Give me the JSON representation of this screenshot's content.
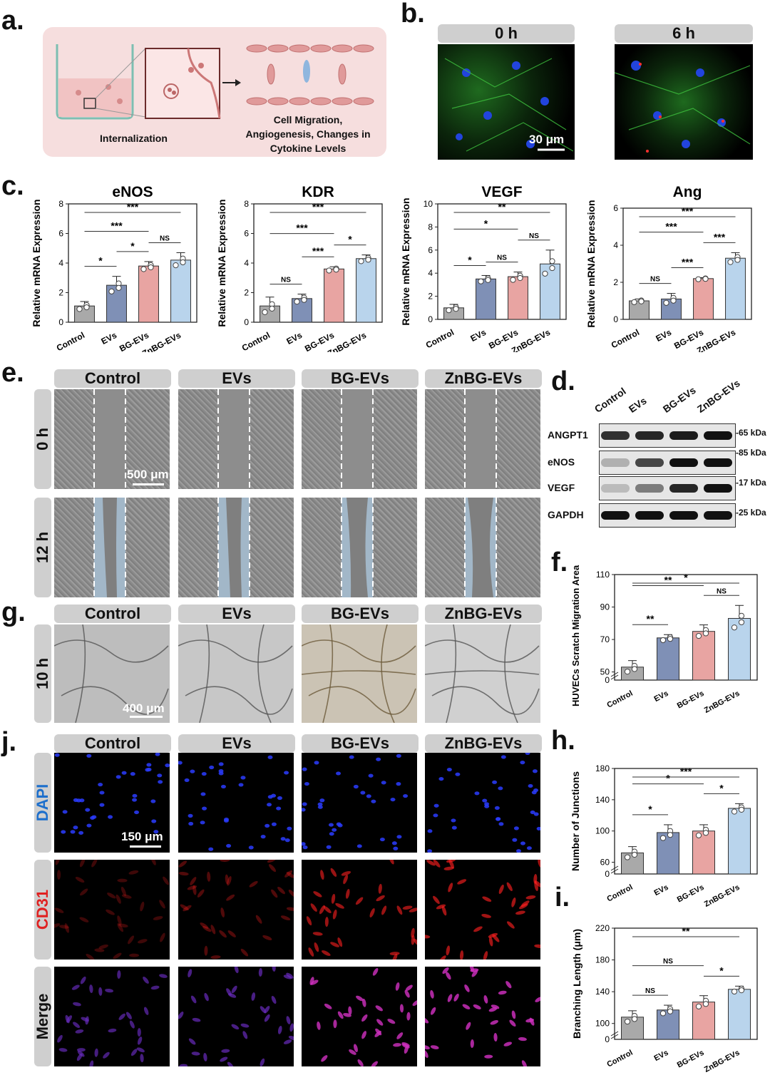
{
  "panel_letters": {
    "a": "a.",
    "b": "b.",
    "c": "c.",
    "d": "d.",
    "e": "e.",
    "f": "f.",
    "g": "g.",
    "h": "h.",
    "i": "i.",
    "j": "j."
  },
  "panel_a": {
    "label1": "Internalization",
    "label2": [
      "Cell Migration,",
      "Angiogenesis, Changes in",
      "Cytokine Levels"
    ]
  },
  "panel_b": {
    "headers": [
      "0 h",
      "6 h"
    ],
    "scale": "30 μm"
  },
  "groups": [
    "Control",
    "EVs",
    "BG-EVs",
    "ZnBG-EVs"
  ],
  "colors": {
    "Control": "#a9a9a9",
    "EVs": "#7f90b6",
    "BG-EVs": "#e8a4a2",
    "ZnBG-EVs": "#b9d4ec"
  },
  "panel_e": {
    "rows": [
      "0 h",
      "12 h"
    ],
    "scale": "500 μm"
  },
  "panel_g": {
    "rows": [
      "10 h"
    ],
    "scale": "400 μm"
  },
  "panel_j": {
    "rows": [
      "DAPI",
      "CD31",
      "Merge"
    ],
    "row_colors": [
      "#1d6fcc",
      "#e02020",
      "#222222"
    ],
    "scale": "150 μm"
  },
  "panel_d": {
    "lanes": [
      "Control",
      "EVs",
      "BG-EVs",
      "ZnBG-EVs"
    ],
    "proteins": [
      "ANGPT1",
      "eNOS",
      "VEGF",
      "GAPDH"
    ],
    "sizes": [
      "65 kDa",
      "85 kDa",
      "17 kDa",
      "25 kDa"
    ],
    "band_intensity": [
      [
        0.85,
        0.9,
        0.95,
        1.0
      ],
      [
        0.25,
        0.75,
        1.0,
        1.0
      ],
      [
        0.2,
        0.5,
        0.9,
        1.0
      ],
      [
        1.0,
        1.0,
        1.0,
        1.0
      ]
    ]
  },
  "chart_data": [
    {
      "id": "eNOS",
      "type": "bar",
      "title": "eNOS",
      "ylabel": "Relative mRNA Expression",
      "categories": [
        "Control",
        "EVs",
        "BG-EVs",
        "ZnBG-EVs"
      ],
      "values": [
        1.1,
        2.5,
        3.8,
        4.2
      ],
      "errors": [
        0.3,
        0.6,
        0.3,
        0.5
      ],
      "ylim": [
        0,
        8
      ],
      "yticks": [
        0,
        2,
        4,
        6,
        8
      ],
      "sig": [
        {
          "a": 0,
          "b": 1,
          "t": "*"
        },
        {
          "a": 1,
          "b": 2,
          "t": "*"
        },
        {
          "a": 0,
          "b": 2,
          "t": "***"
        },
        {
          "a": 2,
          "b": 3,
          "t": "NS"
        },
        {
          "a": 0,
          "b": 3,
          "t": "***"
        }
      ]
    },
    {
      "id": "KDR",
      "type": "bar",
      "title": "KDR",
      "ylabel": "Relative mRNA Expression",
      "categories": [
        "Control",
        "EVs",
        "BG-EVs",
        "ZnBG-EVs"
      ],
      "values": [
        1.1,
        1.6,
        3.6,
        4.3
      ],
      "errors": [
        0.6,
        0.3,
        0.15,
        0.25
      ],
      "ylim": [
        0,
        8
      ],
      "yticks": [
        0,
        2,
        4,
        6,
        8
      ],
      "sig": [
        {
          "a": 0,
          "b": 1,
          "t": "NS"
        },
        {
          "a": 1,
          "b": 2,
          "t": "***"
        },
        {
          "a": 0,
          "b": 2,
          "t": "***"
        },
        {
          "a": 2,
          "b": 3,
          "t": "*"
        },
        {
          "a": 0,
          "b": 3,
          "t": "***"
        }
      ]
    },
    {
      "id": "VEGF",
      "type": "bar",
      "title": "VEGF",
      "ylabel": "Relative mRNA Expression",
      "categories": [
        "Control",
        "EVs",
        "BG-EVs",
        "ZnBG-EVs"
      ],
      "values": [
        1.0,
        3.5,
        3.7,
        4.8
      ],
      "errors": [
        0.3,
        0.3,
        0.4,
        1.2
      ],
      "ylim": [
        0,
        10
      ],
      "yticks": [
        0,
        2,
        4,
        6,
        8,
        10
      ],
      "sig": [
        {
          "a": 0,
          "b": 1,
          "t": "*"
        },
        {
          "a": 1,
          "b": 2,
          "t": "NS"
        },
        {
          "a": 0,
          "b": 2,
          "t": "*"
        },
        {
          "a": 2,
          "b": 3,
          "t": "NS"
        },
        {
          "a": 0,
          "b": 3,
          "t": "**"
        }
      ]
    },
    {
      "id": "Ang",
      "type": "bar",
      "title": "Ang",
      "ylabel": "Relative mRNA Expression",
      "categories": [
        "Control",
        "EVs",
        "BG-EVs",
        "ZnBG-EVs"
      ],
      "values": [
        1.0,
        1.1,
        2.2,
        3.3
      ],
      "errors": [
        0.1,
        0.3,
        0.05,
        0.3
      ],
      "ylim": [
        0,
        6
      ],
      "yticks": [
        0,
        2,
        4,
        6
      ],
      "sig": [
        {
          "a": 0,
          "b": 1,
          "t": "NS"
        },
        {
          "a": 1,
          "b": 2,
          "t": "***"
        },
        {
          "a": 0,
          "b": 2,
          "t": "***"
        },
        {
          "a": 2,
          "b": 3,
          "t": "***"
        },
        {
          "a": 0,
          "b": 3,
          "t": "***"
        }
      ]
    },
    {
      "id": "f",
      "type": "bar",
      "ylabel": "HUVECs Scratch Migration Area (%)",
      "categories": [
        "Control",
        "EVs",
        "BG-EVs",
        "ZnBG-EVs"
      ],
      "values": [
        53,
        71,
        75,
        83
      ],
      "errors": [
        4,
        2,
        4,
        8
      ],
      "ylim": [
        45,
        110
      ],
      "yticks": [
        50,
        70,
        90,
        110
      ],
      "axis_break": true,
      "sig": [
        {
          "a": 0,
          "b": 1,
          "t": "**"
        },
        {
          "a": 0,
          "b": 2,
          "t": "**"
        },
        {
          "a": 2,
          "b": 3,
          "t": "NS"
        },
        {
          "a": 0,
          "b": 3,
          "t": "*"
        }
      ]
    },
    {
      "id": "h",
      "type": "bar",
      "ylabel": "Number of Junctions",
      "categories": [
        "Control",
        "EVs",
        "BG-EVs",
        "ZnBG-EVs"
      ],
      "values": [
        72,
        98,
        100,
        129
      ],
      "errors": [
        8,
        10,
        8,
        6
      ],
      "ylim": [
        45,
        180
      ],
      "yticks": [
        60,
        100,
        140,
        180
      ],
      "axis_break": true,
      "sig": [
        {
          "a": 0,
          "b": 1,
          "t": "*"
        },
        {
          "a": 0,
          "b": 2,
          "t": "*"
        },
        {
          "a": 2,
          "b": 3,
          "t": "*"
        },
        {
          "a": 0,
          "b": 3,
          "t": "***"
        }
      ]
    },
    {
      "id": "i",
      "type": "bar",
      "ylabel": "Branching Length (μm)",
      "categories": [
        "Control",
        "EVs",
        "BG-EVs",
        "ZnBG-EVs"
      ],
      "values": [
        108,
        117,
        127,
        143
      ],
      "errors": [
        8,
        6,
        8,
        4
      ],
      "ylim": [
        80,
        220
      ],
      "yticks": [
        100,
        140,
        180,
        220
      ],
      "axis_break": true,
      "sig": [
        {
          "a": 0,
          "b": 1,
          "t": "NS"
        },
        {
          "a": 0,
          "b": 2,
          "t": "NS"
        },
        {
          "a": 2,
          "b": 3,
          "t": "*"
        },
        {
          "a": 0,
          "b": 3,
          "t": "**"
        }
      ]
    }
  ]
}
